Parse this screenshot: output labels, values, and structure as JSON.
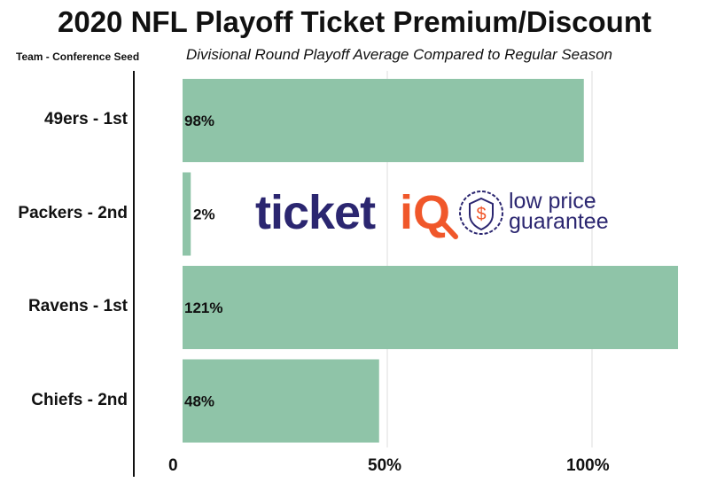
{
  "chart_data": {
    "type": "bar",
    "orientation": "horizontal",
    "title": "2020 NFL Playoff Ticket Premium/Discount",
    "subtitle": "Divisional Round Playoff Average Compared to Regular Season",
    "ylabel": "Team - Conference Seed",
    "categories": [
      "49ers - 1st",
      "Packers - 2nd",
      "Ravens - 1st",
      "Chiefs - 2nd"
    ],
    "values": [
      98,
      2,
      121,
      48
    ],
    "data_labels": [
      "98%",
      "2%",
      "121%",
      "48%"
    ],
    "xlim": [
      0,
      122
    ],
    "xticks": [
      0,
      50,
      100
    ],
    "xtick_labels": [
      "0",
      "50%",
      "100%"
    ],
    "grid": true,
    "bar_color": "#8fc4a8"
  },
  "watermark": {
    "brand": "ticketiQ",
    "tagline_1": "low price",
    "tagline_2": "guarantee",
    "primary_color": "#2b2670",
    "accent_color": "#f0572a"
  }
}
